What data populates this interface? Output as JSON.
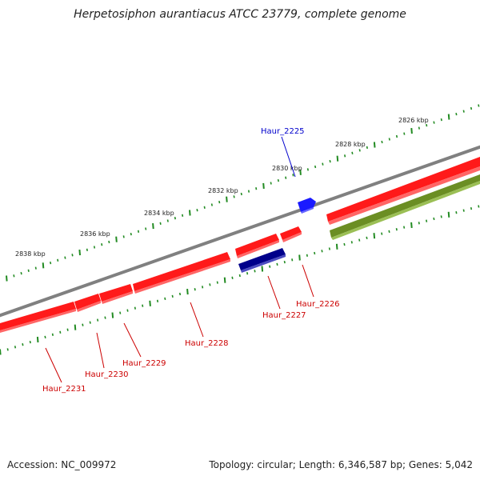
{
  "title": "Herpetosiphon aurantiacus ATCC 23779, complete genome",
  "footer": {
    "accession": "Accession: NC_009972",
    "summary": "Topology: circular; Length: 6,346,587 bp; Genes: 5,042"
  },
  "colors": {
    "forward_gene": "#ff0000",
    "reverse_gene": "#00008b",
    "highlight_gene": "#1a1aff",
    "rna_track": "#6b8e23",
    "backbone": "#808080",
    "ticks": "#228b22",
    "label_red": "#cc0000",
    "label_blue": "#0000cc"
  },
  "kbp_labels": [
    "2826 kbp",
    "2828 kbp",
    "2830 kbp",
    "2832 kbp",
    "2834 kbp",
    "2836 kbp",
    "2838 kbp"
  ],
  "gene_labels": [
    "Haur_2225",
    "Haur_2226",
    "Haur_2227",
    "Haur_2228",
    "Haur_2229",
    "Haur_2230",
    "Haur_2231"
  ]
}
